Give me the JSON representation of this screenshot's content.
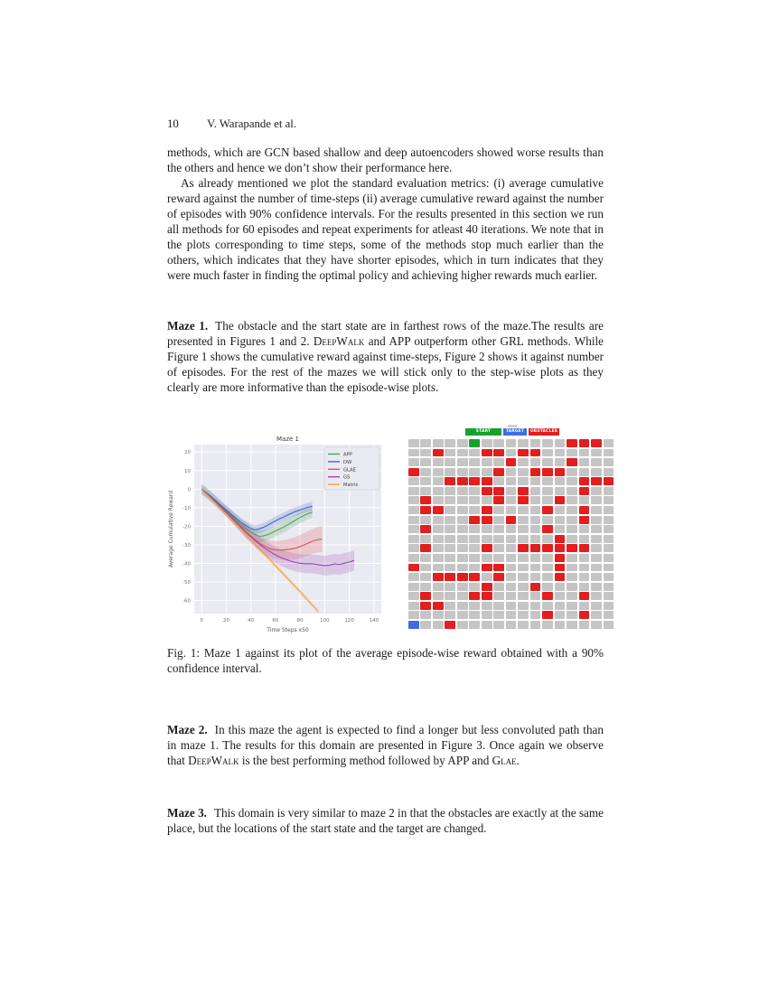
{
  "header": {
    "page_number": "10",
    "running_title": "V. Warapande et al."
  },
  "paragraphs": {
    "p1": "methods, which are GCN based shallow and deep autoencoders showed worse results than the others and hence we don’t show their performance here.",
    "p2": "As already mentioned we plot the standard evaluation metrics: (i) average cumulative reward against the number of time-steps (ii) average cumulative reward against the number of episodes with 90% confidence intervals. For the results presented in this section we run all methods for 60 episodes and repeat experiments for atleast 40 iterations. We note that in the plots corresponding to time steps, some of the methods stop much earlier than the others, which indicates that they have shorter episodes, which in turn indicates that they were much faster in finding the optimal policy and achieving higher rewards much earlier.",
    "maze1": {
      "label": "Maze 1.",
      "s1": "The obstacle and the start state are in farthest rows of the maze.The results are presented in Figures 1 and 2. ",
      "sc1": "DeepWalk",
      "s2": " and APP outperform other GRL methods. While Figure 1 shows the cumulative reward against time-steps, Figure 2 shows it against number of episodes. For the rest of the mazes we will stick only to the step-wise plots as they clearly are more informative than the episode-wise plots."
    },
    "caption": "Fig. 1: Maze 1 against its plot of the average episode-wise reward obtained with a 90% confidence interval.",
    "maze2": {
      "label": "Maze 2.",
      "s1": "In this maze the agent is expected to find a longer but less convoluted path than in maze 1. The results for this domain are presented in Figure 3. Once again we observe that ",
      "sc1": "DeepWalk",
      "s2": " is the best performing method followed by APP and ",
      "sc2": "Glae",
      "s3": "."
    },
    "maze3": {
      "label": "Maze 3.",
      "s1": "This domain is very similar to maze 2 in that the obstacles are exactly at the same place, but the locations of the start state and the target are changed."
    }
  },
  "chart_data": {
    "type": "line",
    "title": "Maze 1",
    "xlabel": "Time Steps x50",
    "ylabel": "Average Cumulative Reward",
    "xlim": [
      -6,
      146
    ],
    "ylim": [
      -67,
      24
    ],
    "xticks": [
      0,
      20,
      40,
      60,
      80,
      100,
      120,
      140
    ],
    "yticks": [
      20,
      10,
      0,
      -10,
      -20,
      -30,
      -40,
      -50,
      -60
    ],
    "grid": true,
    "legend_position": "upper right",
    "plot_bg": "#eaeaf2",
    "series": [
      {
        "name": "APP",
        "color": "#4ea25c",
        "band": 3,
        "points": [
          [
            0,
            0
          ],
          [
            4,
            -2.1
          ],
          [
            8,
            -4.4
          ],
          [
            12,
            -6.9
          ],
          [
            16,
            -9.4
          ],
          [
            20,
            -11.8
          ],
          [
            24,
            -14.3
          ],
          [
            28,
            -16.7
          ],
          [
            32,
            -19.0
          ],
          [
            36,
            -21.2
          ],
          [
            40,
            -23.1
          ],
          [
            44,
            -24.6
          ],
          [
            47,
            -25.4
          ],
          [
            50,
            -25.2
          ],
          [
            54,
            -24.4
          ],
          [
            58,
            -23.2
          ],
          [
            62,
            -21.9
          ],
          [
            66,
            -20.6
          ],
          [
            70,
            -19.2
          ],
          [
            74,
            -17.6
          ],
          [
            78,
            -16.0
          ],
          [
            82,
            -14.6
          ],
          [
            86,
            -13.3
          ],
          [
            90,
            -12.4
          ]
        ]
      },
      {
        "name": "DW",
        "color": "#4468c4",
        "band": 2.4,
        "points": [
          [
            0,
            0
          ],
          [
            4,
            -2.0
          ],
          [
            8,
            -4.2
          ],
          [
            12,
            -6.6
          ],
          [
            16,
            -9.0
          ],
          [
            20,
            -11.2
          ],
          [
            24,
            -13.6
          ],
          [
            28,
            -15.8
          ],
          [
            32,
            -17.8
          ],
          [
            36,
            -19.6
          ],
          [
            40,
            -21.2
          ],
          [
            43,
            -21.9
          ],
          [
            46,
            -21.6
          ],
          [
            50,
            -20.6
          ],
          [
            54,
            -19.3
          ],
          [
            58,
            -17.8
          ],
          [
            62,
            -16.4
          ],
          [
            66,
            -15.2
          ],
          [
            70,
            -13.9
          ],
          [
            74,
            -12.6
          ],
          [
            78,
            -11.6
          ],
          [
            82,
            -10.7
          ],
          [
            86,
            -9.8
          ],
          [
            90,
            -9.2
          ]
        ]
      },
      {
        "name": "GLAE",
        "color": "#e05252",
        "band": [
          0.3,
          0.6,
          0.9,
          1.2,
          1.5,
          1.8,
          2.1,
          2.4,
          2.7,
          3,
          3.3,
          3.6,
          3.9,
          4.2,
          4.5,
          4.8,
          5.1,
          5.4,
          5.7,
          6,
          6.2,
          6.4,
          6.6,
          6.8,
          7,
          7
        ],
        "points": [
          [
            0,
            0
          ],
          [
            4,
            -2.2
          ],
          [
            8,
            -4.6
          ],
          [
            12,
            -7.1
          ],
          [
            16,
            -9.7
          ],
          [
            20,
            -12.3
          ],
          [
            24,
            -14.9
          ],
          [
            28,
            -17.6
          ],
          [
            32,
            -20.2
          ],
          [
            36,
            -22.8
          ],
          [
            40,
            -25.2
          ],
          [
            44,
            -27.5
          ],
          [
            48,
            -29.5
          ],
          [
            52,
            -31.0
          ],
          [
            56,
            -32.2
          ],
          [
            60,
            -32.8
          ],
          [
            64,
            -32.9
          ],
          [
            68,
            -32.6
          ],
          [
            72,
            -32.3
          ],
          [
            76,
            -31.8
          ],
          [
            80,
            -30.9
          ],
          [
            84,
            -29.8
          ],
          [
            88,
            -28.6
          ],
          [
            92,
            -27.6
          ],
          [
            96,
            -27.0
          ],
          [
            98,
            -26.8
          ]
        ]
      },
      {
        "name": "GS",
        "color": "#9c48ae",
        "band": [
          0.3,
          0.6,
          1,
          1.3,
          1.6,
          2,
          2.3,
          2.6,
          3,
          3.2,
          3.4,
          3.6,
          3.8,
          4,
          4.2,
          4.4,
          4.5,
          4.6,
          4.7,
          4.8,
          4.9,
          5,
          5,
          5.1,
          5.2,
          5.3,
          5.4,
          5.4,
          5.5,
          5.5,
          5.5,
          5.5
        ],
        "points": [
          [
            0,
            0
          ],
          [
            4,
            -2.2
          ],
          [
            8,
            -4.7
          ],
          [
            12,
            -7.3
          ],
          [
            16,
            -9.9
          ],
          [
            20,
            -12.5
          ],
          [
            24,
            -15.2
          ],
          [
            28,
            -17.9
          ],
          [
            32,
            -20.6
          ],
          [
            36,
            -23.2
          ],
          [
            40,
            -25.7
          ],
          [
            44,
            -28.0
          ],
          [
            48,
            -30.2
          ],
          [
            52,
            -32.1
          ],
          [
            56,
            -33.8
          ],
          [
            60,
            -35.4
          ],
          [
            64,
            -36.7
          ],
          [
            68,
            -37.8
          ],
          [
            72,
            -38.7
          ],
          [
            76,
            -39.4
          ],
          [
            80,
            -39.9
          ],
          [
            84,
            -40.2
          ],
          [
            88,
            -40.1
          ],
          [
            92,
            -40.4
          ],
          [
            96,
            -40.8
          ],
          [
            100,
            -41.2
          ],
          [
            104,
            -40.9
          ],
          [
            108,
            -40.3
          ],
          [
            112,
            -40.6
          ],
          [
            116,
            -39.9
          ],
          [
            120,
            -39.2
          ],
          [
            124,
            -38.4
          ]
        ]
      },
      {
        "name": "Matrix",
        "color": "#f2a33c",
        "band": 1.2,
        "points": [
          [
            0,
            -0.3
          ],
          [
            10,
            -6.8
          ],
          [
            20,
            -13.5
          ],
          [
            30,
            -20.3
          ],
          [
            40,
            -27.2
          ],
          [
            50,
            -34.2
          ],
          [
            60,
            -41.2
          ],
          [
            70,
            -48.2
          ],
          [
            80,
            -55.2
          ],
          [
            88,
            -61.0
          ],
          [
            95,
            -66.0
          ]
        ]
      }
    ]
  },
  "maze": {
    "rows": 20,
    "cols": 17,
    "legend": [
      {
        "label": "START",
        "color": "#18a12f"
      },
      {
        "label": "TARGET",
        "color": "#3e6ee0"
      },
      {
        "label": "OBSTACLES",
        "color": "#e31e1e"
      }
    ],
    "colors": {
      "empty": "#c5c5c5",
      "obstacle": "#e31e1e",
      "start": "#18a12f",
      "target": "#3e6ee0"
    },
    "grid": [
      ".....S.......OOO.",
      "..O...OO.OO......",
      "........O....O...",
      "O......O..OOO....",
      "...OOOO.......OOO",
      "......OO.O....O..",
      ".O.....O.O..O....",
      ".OO...O....O..O..",
      ".....OO.O.....O..",
      ".O.........O.....",
      "............O....",
      ".O....O..OOOOOO..",
      "............O....",
      "O.....OO....O....",
      "..OOOO.O....O....",
      "......O...O......",
      ".O...OO....O..O..",
      ".OO..............",
      "...........O..O..",
      "T..O............."
    ]
  }
}
